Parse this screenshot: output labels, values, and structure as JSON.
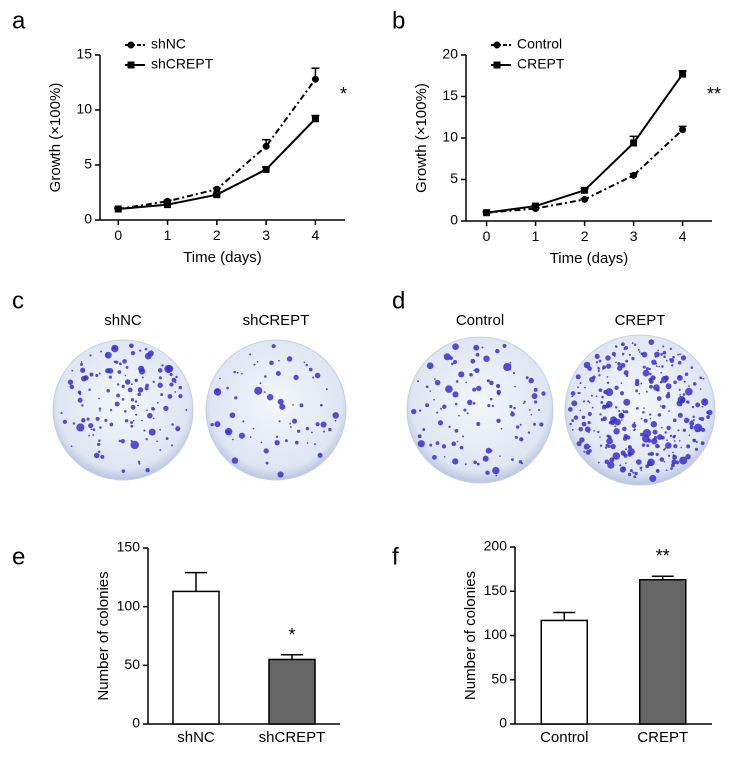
{
  "chart_data": [
    {
      "type": "line",
      "panel_label": "a",
      "x_label": "Time (days)",
      "y_label": "Growth (×100%)",
      "annotation": "*",
      "x": [
        0,
        1,
        2,
        3,
        4
      ],
      "xlim": [
        -0.37,
        4.6
      ],
      "xticks": [
        0,
        1,
        2,
        3,
        4
      ],
      "ylim": [
        0,
        15
      ],
      "yticks": [
        0,
        5,
        10,
        15
      ],
      "series": [
        {
          "name": "shNC",
          "color": "#000000",
          "marker": "circle",
          "dashed": true,
          "values": [
            1,
            1.7,
            2.8,
            6.7,
            12.8
          ],
          "errors": [
            0.1,
            0.1,
            0.1,
            0.6,
            1.0
          ]
        },
        {
          "name": "shCREPT",
          "color": "#000000",
          "marker": "square",
          "dashed": false,
          "values": [
            1,
            1.4,
            2.3,
            4.6,
            9.2
          ],
          "errors": [
            0.05,
            0.1,
            0.1,
            0.2,
            0.3
          ]
        }
      ]
    },
    {
      "type": "line",
      "panel_label": "b",
      "x_label": "Time (days)",
      "y_label": "Growth (×100%)",
      "annotation": "**",
      "x": [
        0,
        1,
        2,
        3,
        4
      ],
      "xlim": [
        -0.42,
        4.6
      ],
      "xticks": [
        0,
        1,
        2,
        3,
        4
      ],
      "ylim": [
        0,
        20
      ],
      "yticks": [
        0,
        5,
        10,
        15,
        20
      ],
      "series": [
        {
          "name": "Control",
          "color": "#000000",
          "marker": "circle",
          "dashed": true,
          "values": [
            1,
            1.5,
            2.6,
            5.5,
            11
          ],
          "errors": [
            0.1,
            0.1,
            0.1,
            0.2,
            0.4
          ]
        },
        {
          "name": "CREPT",
          "color": "#000000",
          "marker": "square",
          "dashed": false,
          "values": [
            1,
            1.8,
            3.7,
            9.4,
            17.7
          ],
          "errors": [
            0.1,
            0.1,
            0.2,
            0.8,
            0.4
          ]
        }
      ]
    },
    {
      "type": "bar",
      "panel_label": "e",
      "y_label": "Number of colonies",
      "annotation": "*",
      "annotation_index": 1,
      "categories": [
        "shNC",
        "shCREPT"
      ],
      "values": [
        113,
        55
      ],
      "errors": [
        16,
        4
      ],
      "colors": [
        "#ffffff",
        "#666666"
      ],
      "ylim": [
        0,
        150
      ],
      "yticks": [
        0,
        50,
        100,
        150
      ]
    },
    {
      "type": "bar",
      "panel_label": "f",
      "y_label": "Number of colonies",
      "annotation": "**",
      "annotation_index": 1,
      "categories": [
        "Control",
        "CREPT"
      ],
      "values": [
        117,
        163
      ],
      "errors": [
        9,
        4
      ],
      "colors": [
        "#ffffff",
        "#666666"
      ],
      "ylim": [
        0,
        200
      ],
      "yticks": [
        0,
        50,
        100,
        150,
        200
      ]
    }
  ],
  "image_panels": [
    {
      "panel_label": "c",
      "labels": [
        "shNC",
        "shCREPT"
      ]
    },
    {
      "panel_label": "d",
      "labels": [
        "Control",
        "CREPT"
      ]
    }
  ]
}
